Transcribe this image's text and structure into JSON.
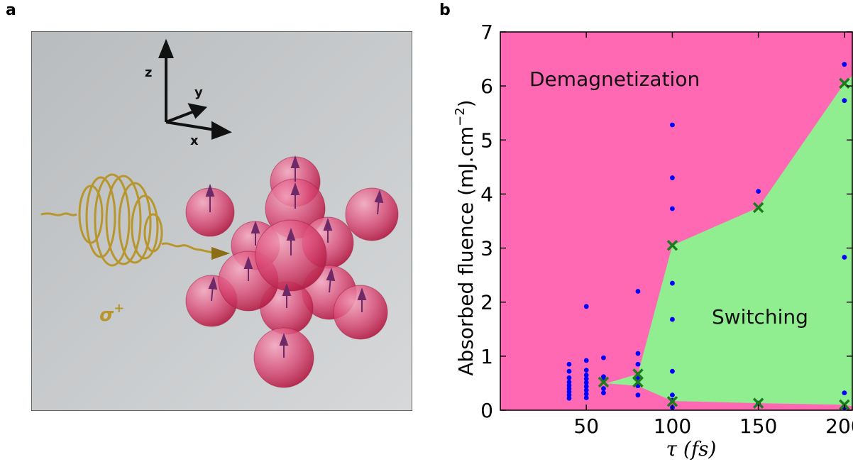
{
  "panels": {
    "a": "a",
    "b": "b"
  },
  "illustration": {
    "axes": {
      "z": "z",
      "y": "y",
      "x": "x"
    },
    "polarization_label": "σ",
    "polarization_sup": "+",
    "colors": {
      "background": "#c9ccce",
      "sphere": "#d2305e",
      "spring": "#b8962e",
      "spin_arrow": "#7a3a78"
    }
  },
  "chart_data": {
    "type": "area",
    "xlabel": "τ (fs)",
    "ylabel": "Absorbed fluence (mJ.cm",
    "ylabel_sup": "−2",
    "ylabel_end": ")",
    "xlim": [
      0,
      205
    ],
    "ylim": [
      0,
      7
    ],
    "xticks": [
      50,
      100,
      150,
      200
    ],
    "yticks": [
      0,
      1,
      2,
      3,
      4,
      5,
      6,
      7
    ],
    "regions": [
      {
        "name": "Demagnetization",
        "color": "#ff69b4"
      },
      {
        "name": "Switching",
        "color": "#90ee90"
      }
    ],
    "switching_region_polygon": [
      [
        60,
        0.48
      ],
      [
        80,
        0.67
      ],
      [
        100,
        3.05
      ],
      [
        150,
        3.75
      ],
      [
        200,
        6.05
      ],
      [
        205,
        6.2
      ],
      [
        205,
        0.07
      ],
      [
        200,
        0.1
      ],
      [
        150,
        0.13
      ],
      [
        100,
        0.17
      ],
      [
        80,
        0.45
      ],
      [
        60,
        0.5
      ]
    ],
    "measurements": {
      "color": "#0000ff",
      "points": [
        [
          40,
          0.22
        ],
        [
          40,
          0.28
        ],
        [
          40,
          0.34
        ],
        [
          40,
          0.4
        ],
        [
          40,
          0.46
        ],
        [
          40,
          0.52
        ],
        [
          40,
          0.6
        ],
        [
          40,
          0.72
        ],
        [
          40,
          0.85
        ],
        [
          50,
          0.23
        ],
        [
          50,
          0.3
        ],
        [
          50,
          0.37
        ],
        [
          50,
          0.44
        ],
        [
          50,
          0.51
        ],
        [
          50,
          0.58
        ],
        [
          50,
          0.65
        ],
        [
          50,
          0.74
        ],
        [
          50,
          0.92
        ],
        [
          50,
          1.92
        ],
        [
          60,
          0.32
        ],
        [
          60,
          0.4
        ],
        [
          60,
          0.55
        ],
        [
          60,
          0.62
        ],
        [
          60,
          0.97
        ],
        [
          80,
          0.28
        ],
        [
          80,
          0.45
        ],
        [
          80,
          0.6
        ],
        [
          80,
          0.85
        ],
        [
          80,
          1.05
        ],
        [
          80,
          2.2
        ],
        [
          100,
          0.05
        ],
        [
          100,
          0.18
        ],
        [
          100,
          0.28
        ],
        [
          100,
          0.72
        ],
        [
          100,
          1.68
        ],
        [
          100,
          2.35
        ],
        [
          100,
          3.73
        ],
        [
          100,
          4.3
        ],
        [
          100,
          5.28
        ],
        [
          150,
          0.13
        ],
        [
          150,
          4.05
        ],
        [
          200,
          0.05
        ],
        [
          200,
          0.32
        ],
        [
          200,
          2.83
        ],
        [
          200,
          5.73
        ],
        [
          200,
          6.4
        ]
      ]
    },
    "thresholds": {
      "color": "#1e7b1e",
      "points": [
        [
          60,
          0.52
        ],
        [
          80,
          0.52
        ],
        [
          80,
          0.67
        ],
        [
          100,
          0.16
        ],
        [
          100,
          3.05
        ],
        [
          150,
          0.13
        ],
        [
          150,
          3.75
        ],
        [
          200,
          0.1
        ],
        [
          200,
          6.05
        ]
      ]
    }
  }
}
